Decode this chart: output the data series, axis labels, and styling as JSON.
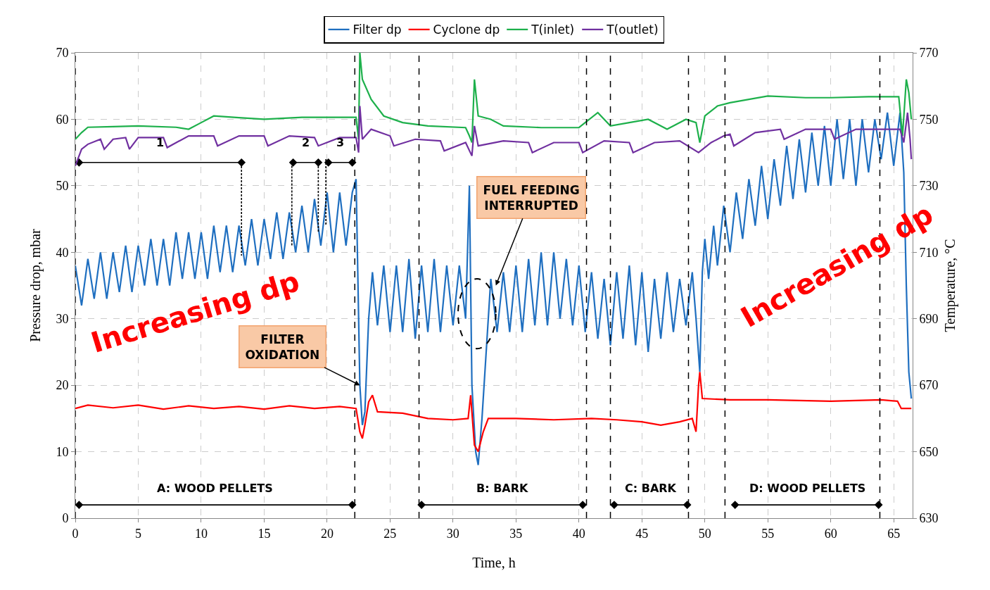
{
  "chart_data": {
    "type": "line",
    "xlabel": "Time, h",
    "ylabel": "Pressure drop, mbar",
    "y2label": "Temperature, °C",
    "xlim": [
      0,
      66.5
    ],
    "xticks": [
      0,
      5,
      10,
      15,
      20,
      25,
      30,
      35,
      40,
      45,
      50,
      55,
      60,
      65
    ],
    "ylim": [
      0,
      70
    ],
    "yticks": [
      0,
      10,
      20,
      30,
      40,
      50,
      60,
      70
    ],
    "y2lim": [
      630,
      770
    ],
    "y2ticks": [
      630,
      650,
      670,
      690,
      710,
      730,
      750,
      770
    ],
    "grid": true,
    "legend": "top",
    "line_style": "solid",
    "marker": "none",
    "series": [
      {
        "name": "Filter dp",
        "color": "#1f6fc0",
        "x": [
          0,
          0.5,
          1,
          1.5,
          2,
          2.5,
          3,
          3.5,
          4,
          4.5,
          5,
          5.5,
          6,
          6.5,
          7,
          7.5,
          8,
          8.5,
          9,
          9.5,
          10,
          10.5,
          11,
          11.5,
          12,
          12.5,
          13,
          13.5,
          14,
          14.5,
          15,
          15.5,
          16,
          16.5,
          17,
          17.5,
          18,
          18.5,
          19,
          19.5,
          20,
          20.5,
          21,
          21.5,
          22,
          22.3,
          22.6,
          22.8,
          23,
          23.3,
          23.6,
          24,
          24.5,
          25,
          25.5,
          26,
          26.5,
          27,
          27.5,
          28,
          28.5,
          29,
          29.5,
          30,
          30.5,
          31,
          31.3,
          31.5,
          31.8,
          32,
          32.3,
          32.7,
          33,
          33.5,
          34,
          34.5,
          35,
          35.5,
          36,
          36.5,
          37,
          37.5,
          38,
          38.5,
          39,
          39.5,
          40,
          40.5,
          41,
          41.5,
          42,
          42.5,
          43,
          43.5,
          44,
          44.5,
          45,
          45.5,
          46,
          46.5,
          47,
          47.5,
          48,
          48.5,
          49,
          49.3,
          49.6,
          49.8,
          50,
          50.3,
          50.7,
          51,
          51.5,
          52,
          52.5,
          53,
          53.5,
          54,
          54.5,
          55,
          55.5,
          56,
          56.5,
          57,
          57.5,
          58,
          58.5,
          59,
          59.5,
          60,
          60.5,
          61,
          61.5,
          62,
          62.5,
          63,
          63.5,
          64,
          64.5,
          65,
          65.5,
          65.8,
          66,
          66.2,
          66.4
        ],
        "values": [
          38,
          32,
          39,
          33,
          40,
          33,
          40,
          34,
          41,
          34,
          41,
          35,
          42,
          35,
          42,
          35,
          43,
          36,
          43,
          36,
          43,
          36,
          44,
          37,
          44,
          37,
          44,
          38,
          45,
          38,
          45,
          39,
          46,
          39,
          46,
          40,
          47,
          40,
          48,
          41,
          49,
          40,
          49,
          41,
          49,
          51,
          20,
          14,
          16,
          30,
          37,
          29,
          38,
          28,
          38,
          28,
          39,
          27,
          38,
          28,
          39,
          28,
          38,
          29,
          38,
          30,
          50,
          20,
          10,
          8,
          15,
          27,
          36,
          28,
          37,
          28,
          38,
          28,
          39,
          29,
          40,
          29,
          40,
          30,
          39,
          29,
          38,
          28,
          37,
          27,
          36,
          26,
          37,
          27,
          38,
          26,
          37,
          25,
          36,
          27,
          37,
          28,
          36,
          29,
          37,
          30,
          22,
          37,
          42,
          36,
          44,
          38,
          47,
          40,
          49,
          42,
          51,
          44,
          53,
          45,
          54,
          47,
          56,
          48,
          57,
          49,
          58,
          50,
          59,
          50,
          60,
          51,
          60,
          50,
          60,
          52,
          60,
          54,
          61,
          53,
          61,
          52,
          35,
          22,
          18
        ]
      },
      {
        "name": "Cyclone dp",
        "color": "#ff0000",
        "x": [
          0,
          1,
          3,
          5,
          7,
          9,
          11,
          13,
          15,
          17,
          19,
          21,
          22.3,
          22.6,
          22.8,
          23,
          23.3,
          23.6,
          24,
          26,
          28,
          30,
          31.2,
          31.4,
          31.7,
          32,
          32.4,
          32.8,
          35,
          38,
          41,
          43,
          45,
          46.5,
          48,
          49,
          49.3,
          49.5,
          49.6,
          49.8,
          52,
          55,
          60,
          64,
          65.3,
          65.6,
          66.4
        ],
        "values": [
          16.5,
          17,
          16.6,
          17,
          16.4,
          16.9,
          16.5,
          16.8,
          16.4,
          16.9,
          16.5,
          16.8,
          16.5,
          13,
          12,
          14,
          17.5,
          18.5,
          16,
          15.8,
          15,
          14.8,
          15,
          18.5,
          11,
          10,
          13,
          15,
          15,
          14.8,
          15,
          14.8,
          14.5,
          14,
          14.5,
          15,
          13,
          20,
          22,
          18,
          17.8,
          17.8,
          17.6,
          17.8,
          17.6,
          16.5,
          16.5
        ]
      },
      {
        "name": "T(inlet)",
        "color": "#1db04b",
        "axis": "y2",
        "x": [
          0,
          0.5,
          1,
          3,
          5,
          8,
          9,
          10,
          11,
          13,
          15,
          18,
          22.3,
          22.5,
          22.6,
          22.8,
          23.5,
          24.5,
          26,
          28,
          31,
          31.3,
          31.5,
          31.7,
          32,
          33,
          34,
          37,
          40,
          41.5,
          42.5,
          44,
          45.5,
          47,
          48.5,
          49.3,
          49.6,
          50,
          51,
          52,
          55,
          58,
          60,
          63,
          65.4,
          65.7,
          66,
          66.2,
          66.4
        ],
        "values": [
          744,
          746,
          747.6,
          747.8,
          748,
          747.6,
          747,
          749,
          751,
          750.5,
          750,
          750.6,
          750.6,
          744,
          770,
          762,
          756,
          751,
          749,
          748,
          747.5,
          745,
          743,
          762,
          751,
          750,
          748,
          747.5,
          747.5,
          752,
          748,
          749,
          750,
          747,
          750,
          749,
          743,
          751,
          754,
          755,
          757,
          756.5,
          756.5,
          756.8,
          756.8,
          745,
          762,
          758,
          750
        ]
      },
      {
        "name": "T(outlet)",
        "color": "#7030a0",
        "axis": "y2",
        "x": [
          0,
          0.5,
          1,
          2,
          2.3,
          3,
          4,
          4.3,
          5,
          7,
          7.3,
          9,
          11,
          11.3,
          13,
          15,
          15.3,
          17,
          19,
          19.3,
          21,
          22.3,
          22.5,
          22.6,
          22.8,
          23.5,
          25,
          25.3,
          27,
          29,
          29.3,
          31,
          31.5,
          31.7,
          32,
          34,
          36,
          36.3,
          38,
          40,
          40.3,
          42,
          44,
          44.3,
          46,
          48,
          49.5,
          50.5,
          51.5,
          52,
          52.3,
          54,
          56,
          56.3,
          58,
          60,
          60.3,
          62,
          64,
          65.5,
          65.8,
          66.1,
          66.3,
          66.4
        ],
        "values": [
          736,
          741,
          742.5,
          744,
          741,
          744,
          744.5,
          741,
          744.5,
          744.5,
          741.5,
          745,
          745,
          742,
          745,
          745,
          742,
          745,
          744.5,
          742,
          744.5,
          744.5,
          740,
          754,
          744,
          747,
          745,
          742,
          744,
          743.5,
          740.5,
          743,
          739,
          748,
          742,
          743.5,
          743,
          740,
          743,
          743,
          740,
          743.5,
          743,
          740,
          743,
          743.5,
          740,
          743,
          745,
          745.5,
          742,
          746,
          747,
          744,
          747,
          747,
          744,
          747,
          747,
          747,
          743,
          752,
          744,
          738
        ]
      },
      {
        "color": "#000000",
        "marker": "diamond",
        "x": [
          0.3,
          13.2
        ],
        "values": [
          53.5,
          53.5
        ]
      },
      {
        "color": "#000000",
        "marker": "diamond",
        "x": [
          17.3,
          19.3
        ],
        "values": [
          53.5,
          53.5
        ]
      },
      {
        "color": "#000000",
        "marker": "diamond",
        "x": [
          20.1,
          22
        ],
        "values": [
          53.5,
          53.5
        ]
      },
      {
        "color": "#000000",
        "line_style": "dashed",
        "x": [
          13.2,
          13.2
        ],
        "values": [
          54,
          39.5
        ]
      },
      {
        "color": "#000000",
        "line_style": "dashed",
        "x": [
          17.2,
          17.2
        ],
        "values": [
          53,
          41
        ]
      },
      {
        "color": "#000000",
        "line_style": "dashed",
        "x": [
          19.3,
          19.3
        ],
        "values": [
          54,
          43
        ]
      },
      {
        "color": "#000000",
        "line_style": "dashed",
        "x": [
          19.9,
          19.9
        ],
        "values": [
          54,
          44
        ]
      },
      {
        "color": "#000000",
        "marker": "diamond",
        "x": [
          0.3,
          22
        ],
        "values": [
          2,
          2
        ]
      },
      {
        "color": "#000000",
        "marker": "diamond",
        "x": [
          27.5,
          40.3
        ],
        "values": [
          2,
          2
        ]
      },
      {
        "color": "#000000",
        "marker": "diamond",
        "x": [
          42.8,
          48.6
        ],
        "values": [
          2,
          2
        ]
      },
      {
        "color": "#000000",
        "marker": "diamond",
        "x": [
          52.4,
          63.8
        ],
        "values": [
          2,
          2
        ]
      }
    ],
    "ref_lines": [
      {
        "axis": "x",
        "value": 0,
        "color": "#000000",
        "line_style": "dashed"
      },
      {
        "axis": "x",
        "value": 22.2,
        "color": "#000000",
        "line_style": "dashed"
      },
      {
        "axis": "x",
        "value": 27.3,
        "color": "#000000",
        "line_style": "dashed"
      },
      {
        "axis": "x",
        "value": 40.6,
        "color": "#000000",
        "line_style": "dashed"
      },
      {
        "axis": "x",
        "value": 42.5,
        "color": "#000000",
        "line_style": "dashed"
      },
      {
        "axis": "x",
        "value": 48.7,
        "color": "#000000",
        "line_style": "dashed"
      },
      {
        "axis": "x",
        "value": 51.6,
        "color": "#000000",
        "line_style": "dashed"
      },
      {
        "axis": "x",
        "value": 63.9,
        "color": "#000000",
        "line_style": "dashed"
      }
    ],
    "annotations": [
      "Increasing dp",
      "Increasing dp",
      {
        "text": "FILTER\nOXIDATION",
        "x": 22.6,
        "y": 20
      },
      {
        "text": "FUEL FEEDING\nINTERRUPTED",
        "x": 33.4,
        "y": 35
      },
      "1",
      "2",
      "3",
      "A: WOOD PELLETS",
      "B: BARK",
      "C: BARK",
      "D: WOOD PELLETS"
    ]
  }
}
